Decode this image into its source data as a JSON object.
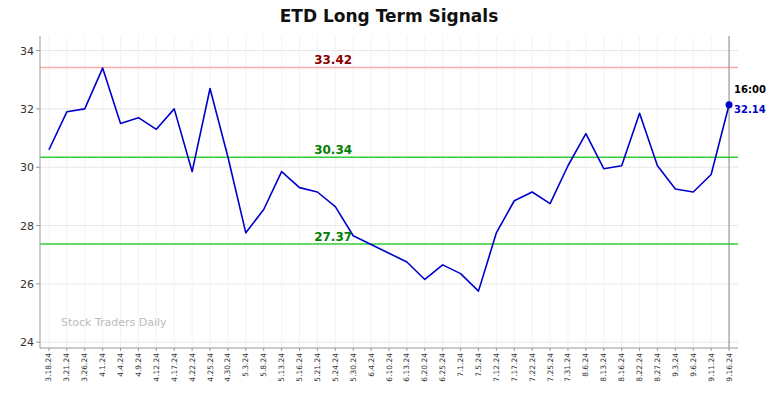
{
  "chart_data": {
    "type": "line",
    "title": "ETD Long Term Signals",
    "categories": [
      "3.18.24",
      "3.21.24",
      "3.26.24",
      "4.1.24",
      "4.4.24",
      "4.9.24",
      "4.12.24",
      "4.17.24",
      "4.22.24",
      "4.25.24",
      "4.30.24",
      "5.3.24",
      "5.8.24",
      "5.13.24",
      "5.16.24",
      "5.21.24",
      "5.24.24",
      "5.30.24",
      "6.4.24",
      "6.10.24",
      "6.13.24",
      "6.20.24",
      "6.25.24",
      "7.1.24",
      "7.5.24",
      "7.12.24",
      "7.17.24",
      "7.22.24",
      "7.25.24",
      "7.31.24",
      "8.6.24",
      "8.13.24",
      "8.16.24",
      "8.22.24",
      "8.27.24",
      "9.3.24",
      "9.6.24",
      "9.11.24",
      "9.16.24"
    ],
    "values": [
      30.6,
      31.9,
      32.0,
      33.4,
      31.5,
      31.7,
      31.3,
      32.0,
      29.85,
      32.7,
      30.35,
      27.75,
      28.55,
      29.85,
      29.3,
      29.15,
      28.65,
      27.65,
      27.35,
      27.05,
      26.75,
      26.15,
      26.65,
      26.35,
      25.75,
      27.75,
      28.85,
      29.15,
      28.75,
      30.05,
      31.15,
      29.95,
      30.05,
      31.85,
      30.05,
      29.25,
      29.15,
      29.75,
      32.14
    ],
    "color": "#0000cc",
    "ylim": [
      23.8,
      34.5
    ],
    "yticks": [
      24,
      26,
      28,
      30,
      32,
      34
    ],
    "grid": true,
    "hlines": [
      {
        "value": 33.42,
        "label": "33.42",
        "color": "#ffaaaa",
        "label_color": "darkred"
      },
      {
        "value": 30.34,
        "label": "30.34",
        "color": "#33cc33",
        "label_color": "green"
      },
      {
        "value": 27.37,
        "label": "27.37",
        "color": "#33cc33",
        "label_color": "green"
      }
    ],
    "last_point": {
      "value": 32.14,
      "value_label": "32.14",
      "time_label": "16:00",
      "color": "#0000cc"
    },
    "watermark": {
      "text": "Stock Traders Daily",
      "color": "#bbbbbb"
    }
  }
}
